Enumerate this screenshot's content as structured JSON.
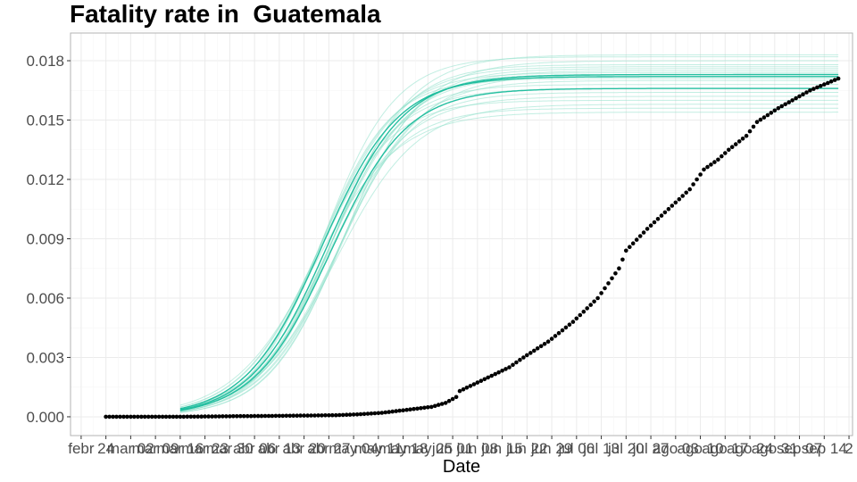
{
  "chart_data": {
    "type": "line",
    "title": "Fatality rate in  Guatemala",
    "xlabel": "Date",
    "ylabel": "",
    "ylim": [
      -0.00095,
      0.0194
    ],
    "y_ticks": [
      0.0,
      0.003,
      0.006,
      0.009,
      0.012,
      0.015,
      0.018
    ],
    "y_tick_labels": [
      "0.000",
      "0.003",
      "0.006",
      "0.009",
      "0.012",
      "0.015",
      "0.018"
    ],
    "x_date_range": [
      "2020-02-14",
      "2020-09-22"
    ],
    "x_ticks": [
      {
        "date": "2020-02-17",
        "label": "febr"
      },
      {
        "date": "2020-02-24",
        "label": "24"
      },
      {
        "date": "2020-03-02",
        "label": "mar 02"
      },
      {
        "date": "2020-03-09",
        "label": "mar 09"
      },
      {
        "date": "2020-03-16",
        "label": "mar 16"
      },
      {
        "date": "2020-03-23",
        "label": "mar 23"
      },
      {
        "date": "2020-03-30",
        "label": "mar 30"
      },
      {
        "date": "2020-04-06",
        "label": "abr 06"
      },
      {
        "date": "2020-04-13",
        "label": "abr 13"
      },
      {
        "date": "2020-04-20",
        "label": "abr 20"
      },
      {
        "date": "2020-04-27",
        "label": "abr 27"
      },
      {
        "date": "2020-05-04",
        "label": "may 04"
      },
      {
        "date": "2020-05-11",
        "label": "may 11"
      },
      {
        "date": "2020-05-18",
        "label": "may 18"
      },
      {
        "date": "2020-05-25",
        "label": "may 25"
      },
      {
        "date": "2020-06-01",
        "label": "jun 01"
      },
      {
        "date": "2020-06-08",
        "label": "jun 08"
      },
      {
        "date": "2020-06-15",
        "label": "jun 15"
      },
      {
        "date": "2020-06-22",
        "label": "jun 22"
      },
      {
        "date": "2020-06-29",
        "label": "jun 29"
      },
      {
        "date": "2020-07-06",
        "label": "jul 06"
      },
      {
        "date": "2020-07-13",
        "label": "jul 13"
      },
      {
        "date": "2020-07-20",
        "label": "jul 20"
      },
      {
        "date": "2020-07-27",
        "label": "jul 27"
      },
      {
        "date": "2020-08-03",
        "label": "ago 03"
      },
      {
        "date": "2020-08-10",
        "label": "ago 10"
      },
      {
        "date": "2020-08-17",
        "label": "ago 17"
      },
      {
        "date": "2020-08-24",
        "label": "ago 24"
      },
      {
        "date": "2020-08-31",
        "label": "ago 31"
      },
      {
        "date": "2020-09-07",
        "label": "sep 07"
      },
      {
        "date": "2020-09-14",
        "label": "sep 14"
      },
      {
        "date": "2020-09-21",
        "label": "2"
      }
    ],
    "grid": true,
    "colors": {
      "observed": "#000000",
      "fitted_strong": "#1abc9c",
      "fitted_faint": "#8fe0cb",
      "grid_major": "#ebebeb",
      "grid_minor": "#f5f5f5",
      "panel_border": "#b3b3b3"
    },
    "series": [
      {
        "kind": "observed_points",
        "x_start": "2020-02-24",
        "x_end": "2020-09-18",
        "points": [
          [
            "2020-02-24",
            0.0
          ],
          [
            "2020-03-15",
            0.0
          ],
          [
            "2020-04-01",
            3e-05
          ],
          [
            "2020-04-15",
            5e-05
          ],
          [
            "2020-04-29",
            8e-05
          ],
          [
            "2020-05-05",
            0.00012
          ],
          [
            "2020-05-12",
            0.0002
          ],
          [
            "2020-05-19",
            0.00035
          ],
          [
            "2020-05-26",
            0.0005
          ],
          [
            "2020-05-30",
            0.0007
          ],
          [
            "2020-06-02",
            0.001
          ],
          [
            "2020-06-03",
            0.0013
          ],
          [
            "2020-06-10",
            0.0019
          ],
          [
            "2020-06-17",
            0.0025
          ],
          [
            "2020-06-21",
            0.003
          ],
          [
            "2020-06-28",
            0.0038
          ],
          [
            "2020-07-05",
            0.0048
          ],
          [
            "2020-07-12",
            0.006
          ],
          [
            "2020-07-18",
            0.0075
          ],
          [
            "2020-07-20",
            0.0084
          ],
          [
            "2020-07-26",
            0.0095
          ],
          [
            "2020-08-01",
            0.0105
          ],
          [
            "2020-08-07",
            0.0115
          ],
          [
            "2020-08-11",
            0.0125
          ],
          [
            "2020-08-15",
            0.013
          ],
          [
            "2020-08-18",
            0.0135
          ],
          [
            "2020-08-23",
            0.0142
          ],
          [
            "2020-08-26",
            0.0149
          ],
          [
            "2020-09-01",
            0.0156
          ],
          [
            "2020-09-05",
            0.016
          ],
          [
            "2020-09-10",
            0.0165
          ],
          [
            "2020-09-18",
            0.0171
          ]
        ]
      },
      {
        "kind": "fitted_curves",
        "x_start": "2020-03-16",
        "x_end": "2020-09-18",
        "midpoint_range": [
          "2020-04-23",
          "2020-05-01"
        ],
        "steepness_per_day_range": [
          0.085,
          0.1
        ],
        "plateau_strong": [
          0.0166,
          0.0172,
          0.0173
        ],
        "plateau_faint": [
          0.0154,
          0.0156,
          0.0158,
          0.016,
          0.0162,
          0.0164,
          0.0166,
          0.0168,
          0.017,
          0.0171,
          0.0172,
          0.0173,
          0.0174,
          0.0175,
          0.0176,
          0.0177,
          0.0178,
          0.018,
          0.0182,
          0.0183
        ]
      }
    ]
  }
}
